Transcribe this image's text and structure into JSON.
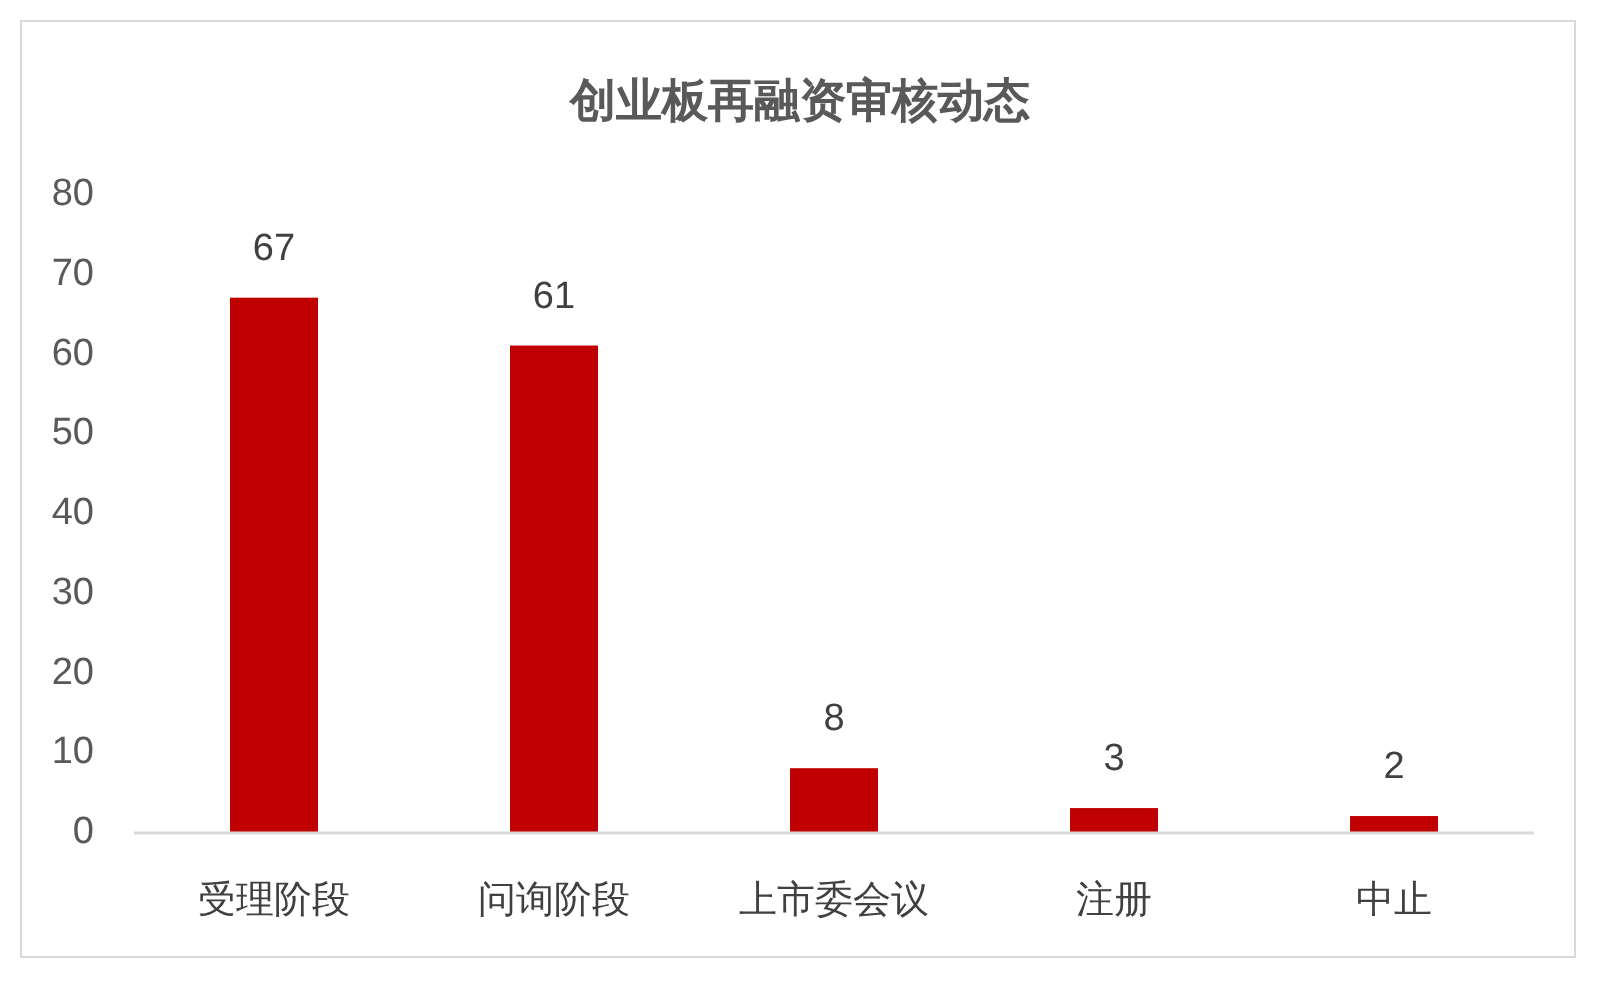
{
  "chart_data": {
    "type": "bar",
    "title": "创业板再融资审核动态",
    "categories": [
      "受理阶段",
      "问询阶段",
      "上市委会议",
      "注册",
      "中止"
    ],
    "values": [
      67,
      61,
      8,
      3,
      2
    ],
    "color": "#c00000",
    "ylim": [
      0,
      80
    ],
    "yticks": [
      0,
      10,
      20,
      30,
      40,
      50,
      60,
      70,
      80
    ],
    "data_labels": true,
    "grid": false
  }
}
